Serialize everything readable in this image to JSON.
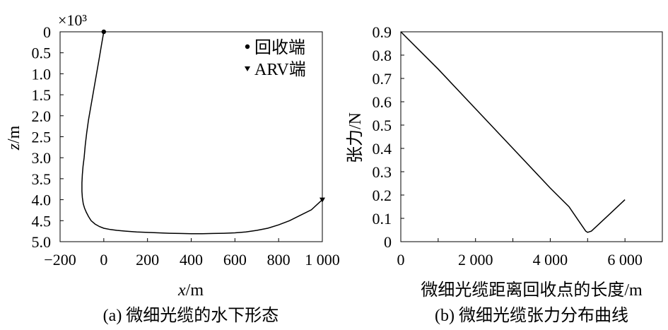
{
  "chart_data": [
    {
      "type": "line",
      "panel": "a",
      "caption": "(a) 微细光缆的水下形态",
      "xlabel": "x/m",
      "xlabel_var": "x",
      "xlabel_unit": "/m",
      "ylabel": "z/m",
      "ylabel_var": "z",
      "ylabel_unit": "/m",
      "y_multiplier": "×10³",
      "xlim": [
        -200,
        1000
      ],
      "ylim": [
        0,
        5.0
      ],
      "y_inverted": true,
      "xticks": [
        -200,
        0,
        200,
        400,
        600,
        800,
        1000
      ],
      "xtick_labels": [
        "−200",
        "0",
        "200",
        "400",
        "600",
        "800",
        "1 000"
      ],
      "yticks": [
        0,
        0.5,
        1.0,
        1.5,
        2.0,
        2.5,
        3.0,
        3.5,
        4.0,
        4.5,
        5.0
      ],
      "ytick_labels": [
        "0",
        "0.5",
        "1.0",
        "1.5",
        "2.0",
        "2.5",
        "3.0",
        "3.5",
        "4.0",
        "4.5",
        "5.0"
      ],
      "grid": false,
      "legend_position": "top-right",
      "legend": [
        {
          "marker": "circle",
          "label": "回收端"
        },
        {
          "marker": "triangle-down",
          "label": "ARV端"
        }
      ],
      "series": [
        {
          "x": [
            0,
            -10,
            -20,
            -30,
            -40,
            -50,
            -60,
            -70,
            -78,
            -85,
            -90,
            -95,
            -98,
            -100,
            -100,
            -98,
            -94,
            -88,
            -80,
            -70,
            -58,
            -40,
            -20,
            0,
            30,
            60,
            100,
            150,
            200,
            250,
            300,
            350,
            400,
            450,
            500,
            550,
            600,
            650,
            700,
            750,
            800,
            850,
            900,
            950,
            1000
          ],
          "y": [
            0,
            0.3,
            0.6,
            0.9,
            1.2,
            1.5,
            1.8,
            2.1,
            2.4,
            2.7,
            3.0,
            3.2,
            3.4,
            3.6,
            3.8,
            3.95,
            4.1,
            4.2,
            4.3,
            4.4,
            4.5,
            4.58,
            4.64,
            4.68,
            4.71,
            4.73,
            4.75,
            4.77,
            4.78,
            4.79,
            4.8,
            4.805,
            4.81,
            4.81,
            4.805,
            4.8,
            4.79,
            4.77,
            4.73,
            4.68,
            4.6,
            4.5,
            4.37,
            4.24,
            4.0
          ]
        }
      ],
      "markers": [
        {
          "label": "回收端",
          "shape": "circle",
          "x": 0,
          "y": 0
        },
        {
          "label": "ARV端",
          "shape": "triangle-down",
          "x": 1000,
          "y": 4.0
        }
      ]
    },
    {
      "type": "line",
      "panel": "b",
      "caption": "(b) 微细光缆张力分布曲线",
      "xlabel": "微细光缆距离回收点的长度/m",
      "ylabel": "张力/N",
      "xlim": [
        0,
        7000
      ],
      "ylim": [
        0,
        0.9
      ],
      "xticks": [
        0,
        2000,
        4000,
        6000
      ],
      "xtick_labels": [
        "0",
        "2 000",
        "4 000",
        "6 000"
      ],
      "minor_xticks": [
        1000,
        3000,
        5000,
        7000
      ],
      "yticks": [
        0,
        0.1,
        0.2,
        0.3,
        0.4,
        0.5,
        0.6,
        0.7,
        0.8,
        0.9
      ],
      "ytick_labels": [
        "0",
        "0.1",
        "0.2",
        "0.3",
        "0.4",
        "0.5",
        "0.6",
        "0.7",
        "0.8",
        "0.9"
      ],
      "grid": false,
      "series": [
        {
          "x": [
            0,
            1000,
            2000,
            3000,
            4000,
            4500,
            4800,
            4950,
            5000,
            5100,
            5300,
            5600,
            6000
          ],
          "y": [
            0.9,
            0.74,
            0.57,
            0.4,
            0.23,
            0.15,
            0.08,
            0.045,
            0.04,
            0.045,
            0.075,
            0.12,
            0.18
          ]
        }
      ]
    }
  ]
}
